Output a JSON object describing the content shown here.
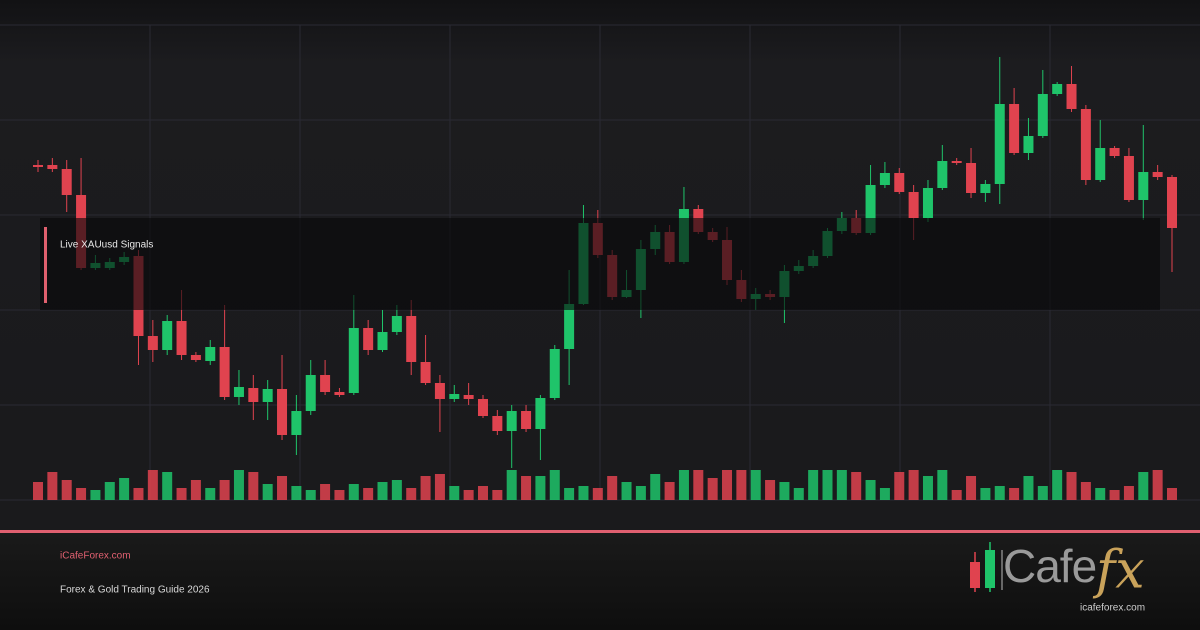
{
  "chart_data": {
    "type": "candlestick",
    "annotation": "Live XAUusd Signals",
    "ylim": [
      0,
      600
    ],
    "y2lim": [
      0,
      100
    ],
    "up_color": "#1fc46a",
    "down_color": "#e0434f",
    "open": [
      435,
      435,
      431,
      405,
      332,
      332,
      338,
      344,
      264,
      250,
      279,
      245,
      239,
      253,
      203,
      212,
      198,
      211,
      165,
      189,
      225,
      208,
      207,
      272,
      250,
      268,
      284,
      238,
      217,
      201,
      205,
      201,
      184,
      169,
      189,
      171,
      202,
      251,
      296,
      377,
      345,
      303,
      310,
      351,
      368,
      338,
      391,
      368,
      360,
      320,
      301,
      306,
      303,
      329,
      334,
      344,
      369,
      382,
      367,
      415,
      427,
      408,
      382,
      412,
      439,
      437,
      407,
      416,
      496,
      447,
      464,
      506,
      516,
      491,
      420,
      452,
      444,
      400,
      428,
      423
    ],
    "high": [
      440,
      442,
      440,
      442,
      345,
      342,
      348,
      350,
      280,
      285,
      310,
      248,
      260,
      295,
      230,
      225,
      220,
      245,
      205,
      240,
      240,
      212,
      305,
      280,
      290,
      295,
      300,
      265,
      225,
      215,
      217,
      205,
      190,
      195,
      195,
      205,
      255,
      330,
      395,
      390,
      350,
      330,
      360,
      375,
      375,
      413,
      395,
      372,
      373,
      330,
      312,
      310,
      335,
      340,
      350,
      372,
      388,
      390,
      435,
      438,
      432,
      415,
      420,
      455,
      442,
      452,
      420,
      543,
      512,
      482,
      530,
      518,
      534,
      495,
      480,
      454,
      452,
      475,
      435,
      425
    ],
    "low": [
      428,
      428,
      388,
      330,
      330,
      330,
      335,
      235,
      238,
      245,
      240,
      238,
      235,
      200,
      195,
      180,
      180,
      160,
      145,
      185,
      205,
      203,
      205,
      245,
      248,
      265,
      225,
      215,
      168,
      198,
      195,
      182,
      165,
      132,
      168,
      140,
      200,
      215,
      295,
      342,
      300,
      302,
      282,
      345,
      336,
      336,
      366,
      358,
      315,
      298,
      290,
      300,
      277,
      326,
      332,
      342,
      366,
      365,
      365,
      412,
      406,
      360,
      378,
      410,
      435,
      402,
      398,
      396,
      445,
      440,
      462,
      504,
      488,
      415,
      418,
      442,
      398,
      380,
      420,
      328
    ],
    "close": [
      433,
      431,
      405,
      332,
      337,
      338,
      343,
      264,
      250,
      279,
      245,
      240,
      253,
      203,
      213,
      198,
      211,
      165,
      189,
      225,
      208,
      205,
      272,
      250,
      268,
      284,
      238,
      217,
      201,
      206,
      201,
      184,
      169,
      189,
      171,
      202,
      251,
      296,
      377,
      345,
      303,
      310,
      351,
      368,
      338,
      391,
      368,
      360,
      320,
      301,
      306,
      303,
      329,
      334,
      344,
      369,
      382,
      367,
      415,
      427,
      408,
      382,
      412,
      439,
      437,
      407,
      416,
      496,
      447,
      464,
      506,
      516,
      491,
      420,
      452,
      444,
      400,
      428,
      423,
      372
    ],
    "volume": [
      18,
      28,
      20,
      12,
      10,
      18,
      22,
      12,
      30,
      28,
      12,
      20,
      12,
      20,
      30,
      28,
      16,
      24,
      14,
      10,
      16,
      10,
      16,
      12,
      18,
      20,
      12,
      24,
      26,
      14,
      10,
      14,
      10,
      30,
      24,
      24,
      30,
      12,
      14,
      12,
      24,
      18,
      14,
      26,
      18,
      30,
      30,
      22,
      30,
      30,
      30,
      20,
      18,
      12,
      30,
      30,
      30,
      28,
      20,
      12,
      28,
      30,
      24,
      30,
      10,
      24,
      12,
      14,
      12,
      24,
      14,
      30,
      28,
      18,
      12,
      10,
      14,
      28,
      30,
      12
    ]
  },
  "footer": {
    "site": "iCafeForex.com",
    "subtitle": "Forex & Gold Trading Guide 2026",
    "logo_text": "Cafe",
    "logo_fx": "fx",
    "logo_url": "icafeforex.com"
  }
}
